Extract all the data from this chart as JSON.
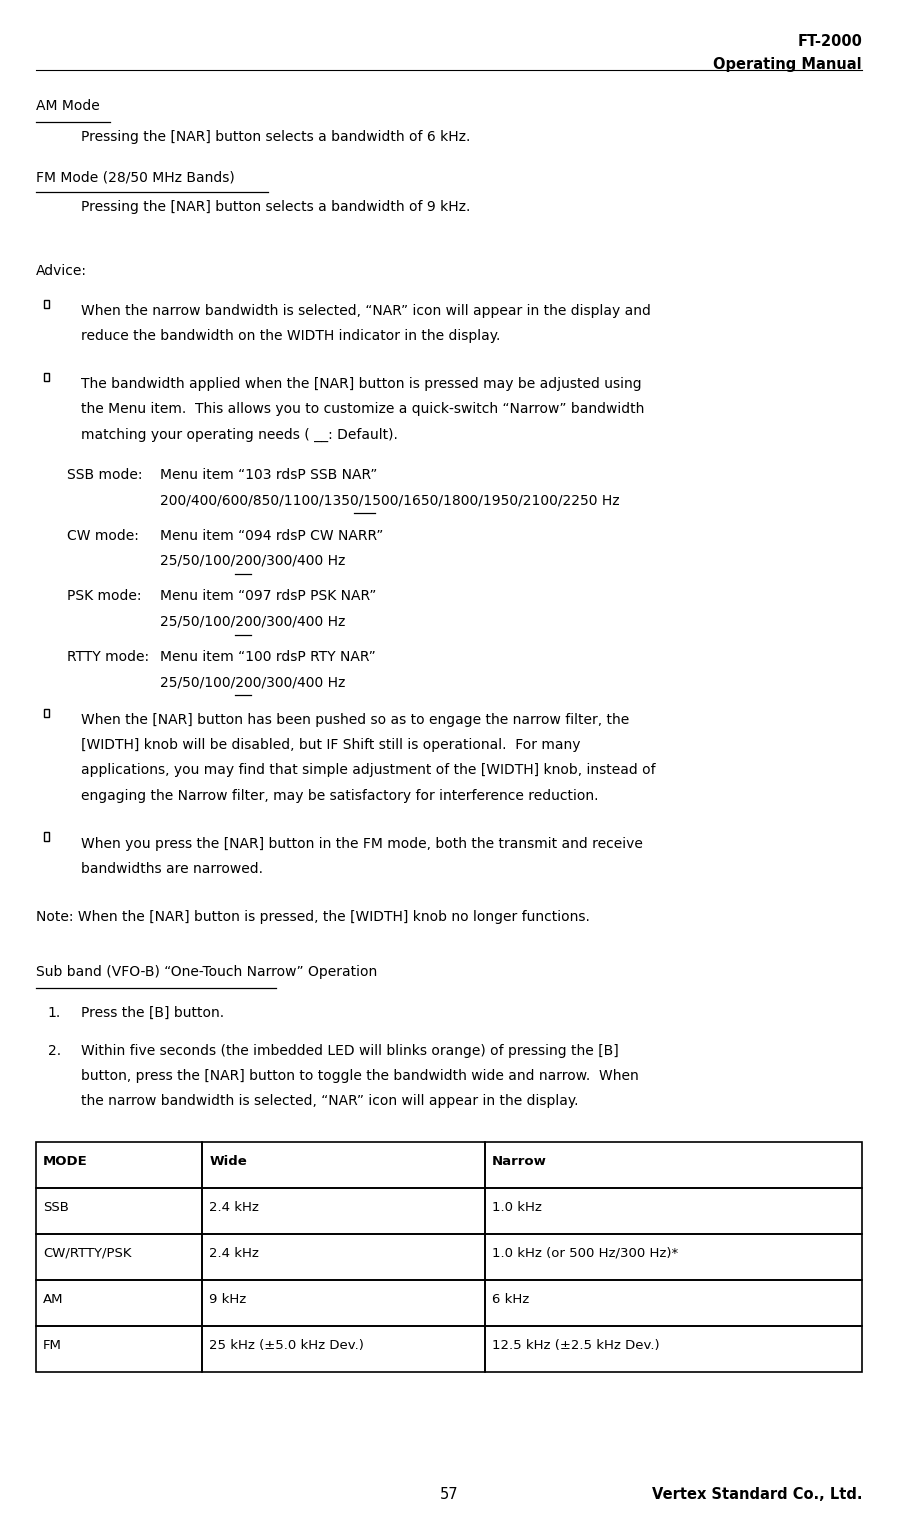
{
  "header_right_line1": "FT-2000",
  "header_right_line2": "Operating Manual",
  "bg_color": "#ffffff",
  "text_color": "#000000",
  "page_number": "57",
  "footer_right": "Vertex Standard Co., Ltd.",
  "am_heading": "AM Mode",
  "am_body": "Pressing the [NAR] button selects a bandwidth of 6 kHz.",
  "fm_heading": "FM Mode (28/50 MHz Bands)",
  "fm_body": "Pressing the [NAR] button selects a bandwidth of 9 kHz.",
  "advice_label": "Advice:",
  "bullet1_lines": [
    "When the narrow bandwidth is selected, “NAR” icon will appear in the display and",
    "reduce the bandwidth on the WIDTH indicator in the display."
  ],
  "bullet2_lines": [
    "The bandwidth applied when the [NAR] button is pressed may be adjusted using",
    "the Menu item.  This allows you to customize a quick-switch “Narrow” bandwidth",
    "matching your operating needs ( __: Default)."
  ],
  "menu_rows": [
    {
      "label": "SSB mode:",
      "menu": "Menu item “103 rdsP SSB NAR”",
      "val_before": "200/400/600/850/1100/1350/1500/1650/",
      "val_underline": "1800",
      "val_after": "/1950/2100/2250 Hz"
    },
    {
      "label": "CW mode:",
      "menu": "Menu item “094 rdsP CW NARR”",
      "val_before": "25/50/100/200/",
      "val_underline": "300",
      "val_after": "/400 Hz"
    },
    {
      "label": "PSK mode:",
      "menu": "Menu item “097 rdsP PSK NAR”",
      "val_before": "25/50/100/200/",
      "val_underline": "300",
      "val_after": "/400 Hz"
    },
    {
      "label": "RTTY mode:",
      "menu": "Menu item “100 rdsP RTY NAR”",
      "val_before": "25/50/100/200/",
      "val_underline": "300",
      "val_after": "/400 Hz"
    }
  ],
  "bullet3_lines": [
    "When the [NAR] button has been pushed so as to engage the narrow filter, the",
    "[WIDTH] knob will be disabled, but IF Shift still is operational.  For many",
    "applications, you may find that simple adjustment of the [WIDTH] knob, instead of",
    "engaging the Narrow filter, may be satisfactory for interference reduction."
  ],
  "bullet4_lines": [
    "When you press the [NAR] button in the FM mode, both the transmit and receive",
    "bandwidths are narrowed."
  ],
  "note_line": "Note: When the [NAR] button is pressed, the [WIDTH] knob no longer functions.",
  "sub_heading": "Sub band (VFO-B) “One-Touch Narrow” Operation",
  "item1": "Press the [B] button.",
  "item2_lines": [
    "Within five seconds (the imbedded LED will blinks orange) of pressing the [B]",
    "button, press the [NAR] button to toggle the bandwidth wide and narrow.  When",
    "the narrow bandwidth is selected, “NAR” icon will appear in the display."
  ],
  "table_headers": [
    "MODE",
    "Wide",
    "Narrow"
  ],
  "table_rows": [
    [
      "SSB",
      "2.4 kHz",
      "1.0 kHz"
    ],
    [
      "CW/RTTY/PSK",
      "2.4 kHz",
      "1.0 kHz (or 500 Hz/300 Hz)*"
    ],
    [
      "AM",
      "9 kHz",
      "6 kHz"
    ],
    [
      "FM",
      "25 kHz (±5.0 kHz Dev.)",
      "12.5 kHz (±2.5 kHz Dev.)"
    ]
  ]
}
